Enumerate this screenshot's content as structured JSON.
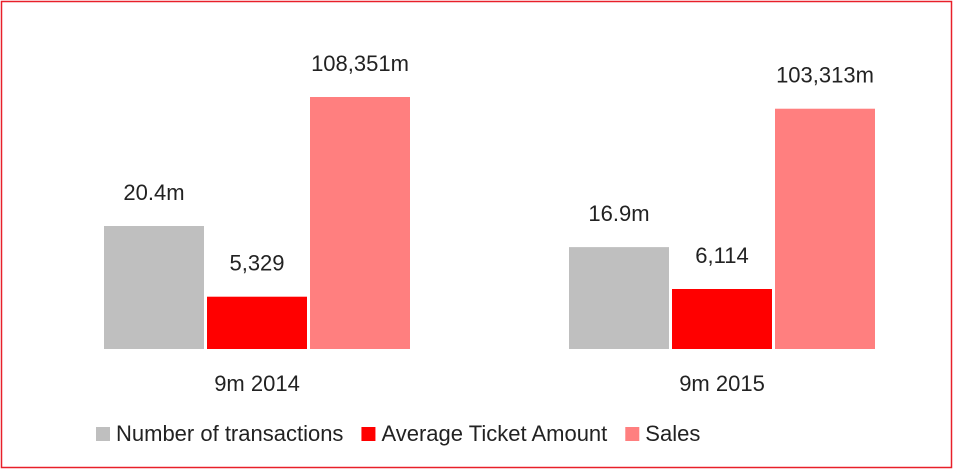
{
  "chart_data": {
    "type": "bar",
    "categories": [
      "9m 2014",
      "9m 2015"
    ],
    "series": [
      {
        "name": "Number of transactions",
        "color": "#bfbfbf",
        "values": [
          20.4,
          16.9
        ],
        "value_labels": [
          "20.4m",
          "16.9m"
        ]
      },
      {
        "name": "Average Ticket Amount",
        "color": "#ff0000",
        "values": [
          5329,
          6114
        ],
        "value_labels": [
          "5,329",
          "6,114"
        ]
      },
      {
        "name": "Sales",
        "color": "#ff7f7f",
        "values": [
          108351,
          103313
        ],
        "value_labels": [
          "108,351m",
          "103,313m"
        ]
      }
    ]
  }
}
